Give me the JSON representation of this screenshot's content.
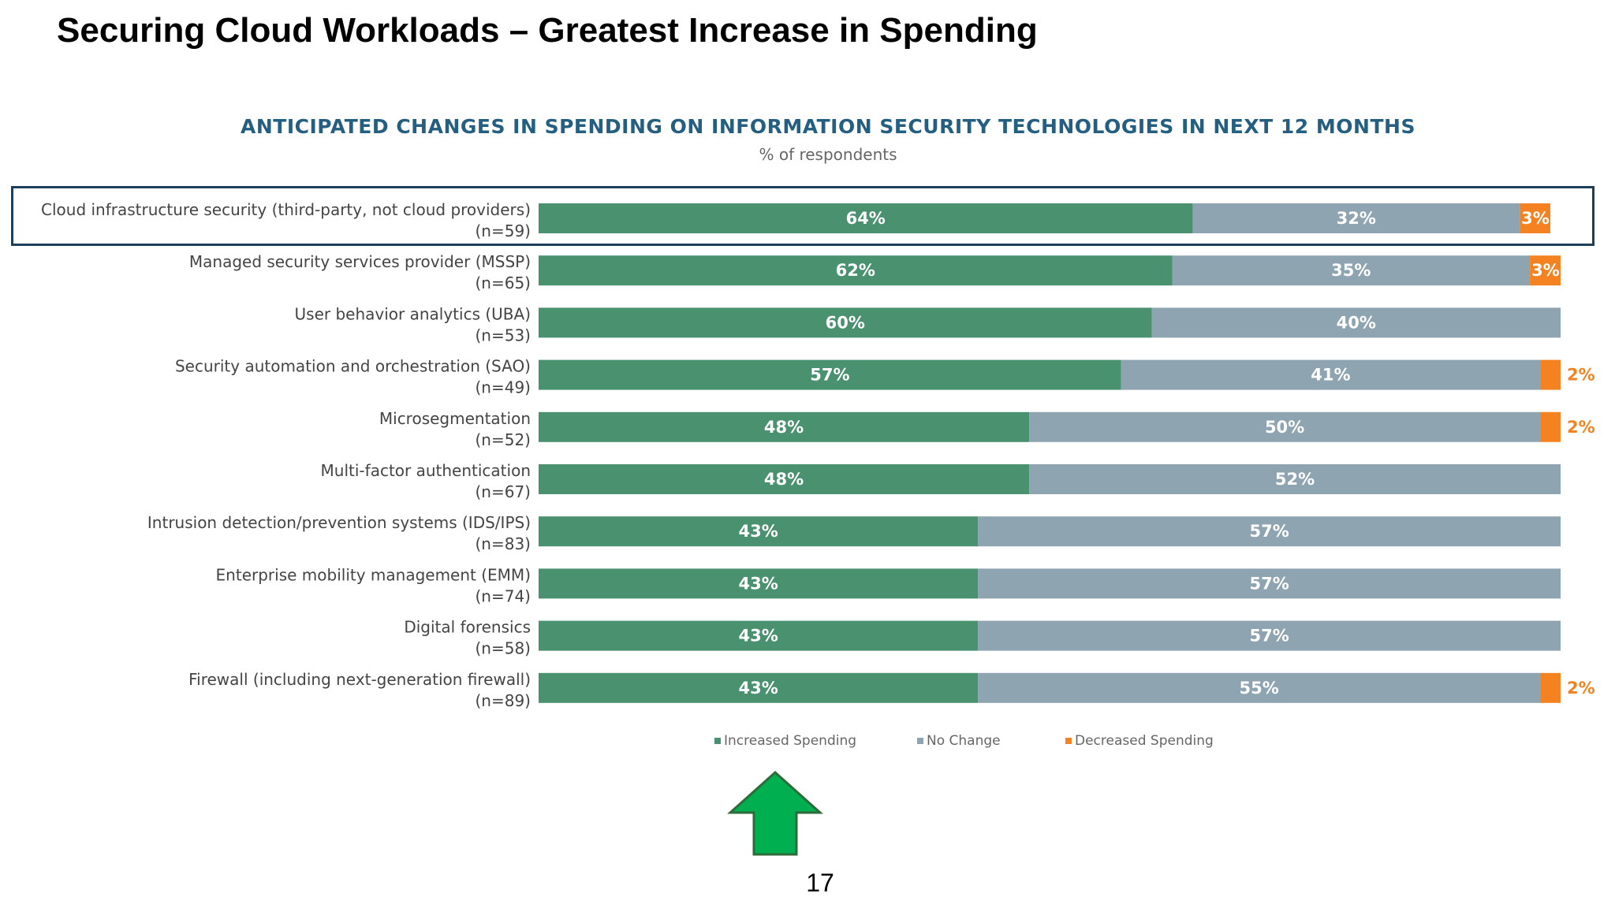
{
  "slide": {
    "title": "Securing Cloud Workloads – Greatest Increase in Spending",
    "page_number": "17"
  },
  "colors": {
    "increased": "#4a9170",
    "no_change": "#8ea4b1",
    "decreased": "#f58220",
    "title": "#245f82",
    "highlight_border": "#1d3f5c",
    "arrow_fill": "#00b050",
    "arrow_stroke": "#2e6b3a"
  },
  "icons": {
    "arrow": "up-arrow-icon"
  },
  "chart_data": {
    "type": "bar",
    "orientation": "horizontal",
    "stacked": true,
    "title": "ANTICIPATED CHANGES IN SPENDING ON INFORMATION SECURITY TECHNOLOGIES IN NEXT 12 MONTHS",
    "subtitle": "% of respondents",
    "categories": [
      {
        "name": "Cloud infrastructure security (third-party, not cloud providers)",
        "n": "(n=59)"
      },
      {
        "name": "Managed security services provider (MSSP)",
        "n": "(n=65)"
      },
      {
        "name": "User behavior analytics (UBA)",
        "n": "(n=53)"
      },
      {
        "name": "Security automation and orchestration (SAO)",
        "n": "(n=49)"
      },
      {
        "name": "Microsegmentation",
        "n": "(n=52)"
      },
      {
        "name": "Multi-factor authentication",
        "n": "(n=67)"
      },
      {
        "name": "Intrusion detection/prevention systems (IDS/IPS)",
        "n": "(n=83)"
      },
      {
        "name": "Enterprise mobility management (EMM)",
        "n": "(n=74)"
      },
      {
        "name": "Digital forensics",
        "n": "(n=58)"
      },
      {
        "name": "Firewall (including next-generation firewall)",
        "n": "(n=89)"
      }
    ],
    "series": [
      {
        "name": "Increased Spending",
        "values": [
          64,
          62,
          60,
          57,
          48,
          48,
          43,
          43,
          43,
          43
        ]
      },
      {
        "name": "No Change",
        "values": [
          32,
          35,
          40,
          41,
          50,
          52,
          57,
          57,
          57,
          55
        ]
      },
      {
        "name": "Decreased Spending",
        "values": [
          3,
          3,
          0,
          2,
          2,
          0,
          0,
          0,
          0,
          2
        ]
      }
    ],
    "value_suffix": "%",
    "legend_position": "bottom",
    "highlighted_category": "Cloud infrastructure security (third-party, not cloud providers)"
  }
}
